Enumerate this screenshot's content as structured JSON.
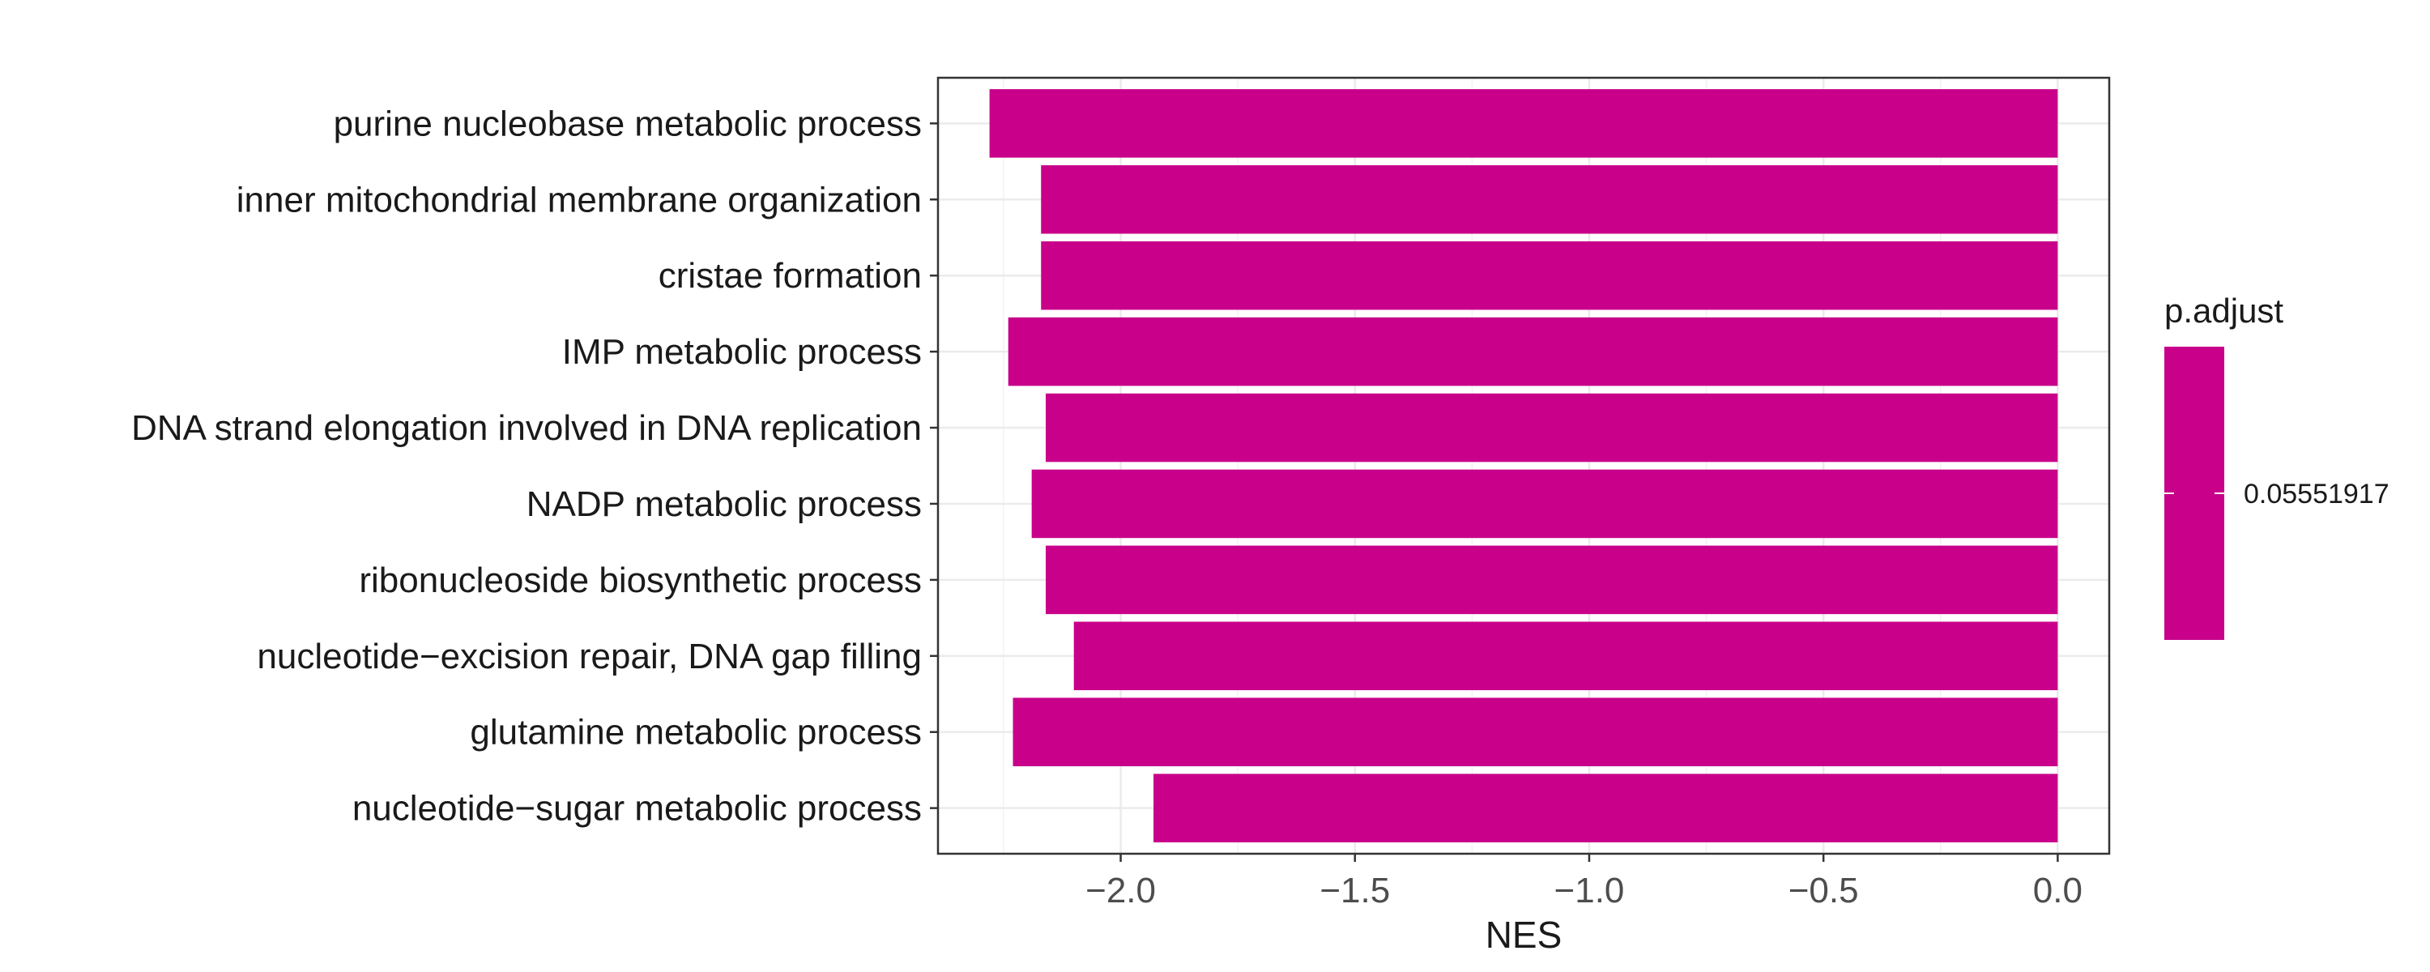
{
  "chart_data": {
    "type": "bar",
    "orientation": "horizontal",
    "categories": [
      "purine nucleobase metabolic process",
      "inner mitochondrial membrane organization",
      "cristae formation",
      "IMP metabolic process",
      "DNA strand elongation involved in DNA replication",
      "NADP metabolic process",
      "ribonucleoside biosynthetic process",
      "nucleotide−excision repair, DNA gap filling",
      "glutamine metabolic process",
      "nucleotide−sugar metabolic process"
    ],
    "values": [
      -2.28,
      -2.17,
      -2.17,
      -2.24,
      -2.16,
      -2.19,
      -2.16,
      -2.1,
      -2.23,
      -1.93
    ],
    "xlabel": "NES",
    "ylabel": "",
    "xlim": [
      -2.39,
      0.11
    ],
    "x_ticks": [
      -2.0,
      -1.5,
      -1.0,
      -0.5,
      0.0
    ],
    "x_tick_labels": [
      "−2.0",
      "−1.5",
      "−1.0",
      "−0.5",
      "0.0"
    ],
    "bar_color": "#C8008A",
    "grid": true,
    "legend": {
      "title": "p.adjust",
      "placement": "right",
      "labels": [
        "0.05551917"
      ],
      "color": "#C8008A"
    }
  }
}
